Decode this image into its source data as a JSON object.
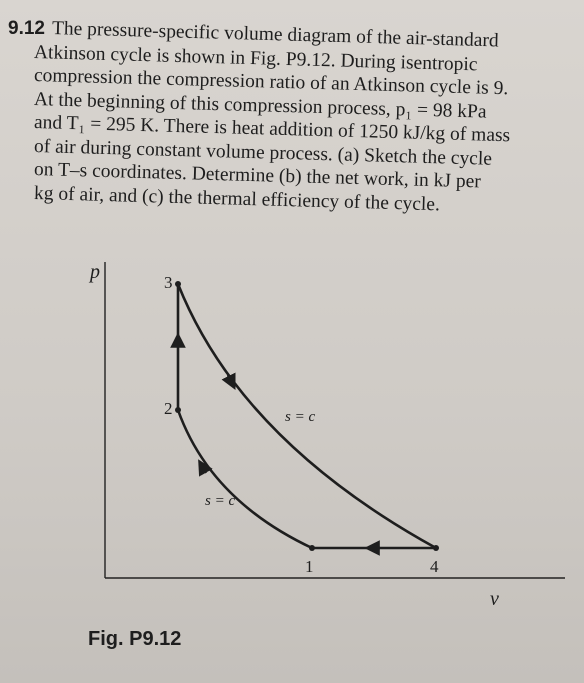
{
  "problem": {
    "number": "9.12",
    "lines": [
      "The pressure-specific volume diagram of the air-standard",
      "Atkinson cycle is shown in Fig. P9.12. During isentropic",
      "compression the compression ratio of an Atkinson cycle is 9.",
      "At the beginning of this compression process, p₁ = 98 kPa",
      "and T₁ = 295 K. There is heat addition of 1250 kJ/kg of mass",
      "of air during constant volume process. (a) Sketch the cycle",
      "on T–s coordinates. Determine (b) the net work, in kJ per",
      "kg of air, and (c) the thermal efficiency of the cycle."
    ]
  },
  "figure": {
    "y_axis": "p",
    "x_axis": "v",
    "points": [
      "1",
      "2",
      "3",
      "4"
    ],
    "process_labels": [
      "s = c",
      "s = c"
    ],
    "caption": "Fig. P9.12"
  }
}
